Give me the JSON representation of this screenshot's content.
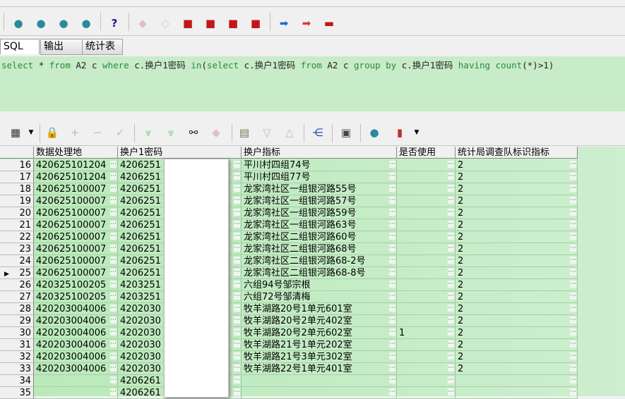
{
  "toolbar_main": {
    "icons": [
      "db-connect-icon",
      "sql-run-icon",
      "binoculars-db-icon",
      "db-disconnect-icon",
      "help-icon",
      "eraser-icon",
      "book-open-icon",
      "book-icon",
      "book-folder-icon",
      "book-copy-icon",
      "book-edit-icon",
      "blue-arrow-right-icon",
      "red-arrow-right-icon",
      "toolbox-icon"
    ],
    "help_label": "?"
  },
  "tabs": [
    {
      "label": "SQL",
      "active": true
    },
    {
      "label": "输出"
    },
    {
      "label": "统计表"
    }
  ],
  "sql": {
    "text": "select * from A2 c where c.换户1密码 in(select c.换户1密码 from A2 c group by c.换户1密码 having count(*)>1)"
  },
  "grid_toolbar": {
    "icons": [
      "grid-icon",
      "lock-icon",
      "plus-icon",
      "minus-icon",
      "check-icon",
      "down-double-icon",
      "down-double-bar-icon",
      "binoculars-icon",
      "eraser-icon",
      "paste-icon",
      "triangle-down-icon",
      "triangle-up-icon",
      "tree-icon",
      "save-icon",
      "db-refresh-icon",
      "chart-icon"
    ]
  },
  "columns": [
    "数据处理地",
    "换户1密码",
    "换户指标",
    "是否使用",
    "统计局调查队标识指标"
  ],
  "rows": [
    [
      "16",
      "420625101204",
      "4206251",
      "平川村四组74号",
      "",
      "2"
    ],
    [
      "17",
      "420625101204",
      "4206251",
      "平川村四组77号",
      "",
      "2"
    ],
    [
      "18",
      "420625100007",
      "4206251",
      "龙家湾社区一组银河路55号",
      "",
      "2"
    ],
    [
      "19",
      "420625100007",
      "4206251",
      "龙家湾社区一组银河路57号",
      "",
      "2"
    ],
    [
      "20",
      "420625100007",
      "4206251",
      "龙家湾社区一组银河路59号",
      "",
      "2"
    ],
    [
      "21",
      "420625100007",
      "4206251",
      "龙家湾社区一组银河路63号",
      "",
      "2"
    ],
    [
      "22",
      "420625100007",
      "4206251",
      "龙家湾社区二组银河路60号",
      "",
      "2"
    ],
    [
      "23",
      "420625100007",
      "4206251",
      "龙家湾社区二组银河路68号",
      "",
      "2"
    ],
    [
      "24",
      "420625100007",
      "4206251",
      "龙家湾社区二组银河路68-2号",
      "",
      "2"
    ],
    [
      "25",
      "420625100007",
      "4206251",
      "龙家湾社区二组银河路68-8号",
      "",
      "2"
    ],
    [
      "26",
      "420325100205",
      "4203251",
      "六组94号邹宗根",
      "",
      "2"
    ],
    [
      "27",
      "420325100205",
      "4203251",
      "六组72号邹清梅",
      "",
      "2"
    ],
    [
      "28",
      "420203004006",
      "4202030",
      "牧羊湖路20号1单元601室",
      "",
      "2"
    ],
    [
      "29",
      "420203004006",
      "4202030",
      "牧羊湖路20号2单元402室",
      "",
      "2"
    ],
    [
      "30",
      "420203004006",
      "4202030",
      "牧羊湖路20号2单元602室",
      "1",
      "2"
    ],
    [
      "31",
      "420203004006",
      "4202030",
      "牧羊湖路21号1单元202室",
      "",
      "2"
    ],
    [
      "32",
      "420203004006",
      "4202030",
      "牧羊湖路21号3单元302室",
      "",
      "2"
    ],
    [
      "33",
      "420203004006",
      "4202030",
      "牧羊湖路22号1单元401室",
      "",
      "2"
    ],
    [
      "34",
      "",
      "4206261",
      "",
      "",
      ""
    ],
    [
      "35",
      "",
      "4206261",
      "",
      "",
      ""
    ]
  ],
  "current_row": "25"
}
